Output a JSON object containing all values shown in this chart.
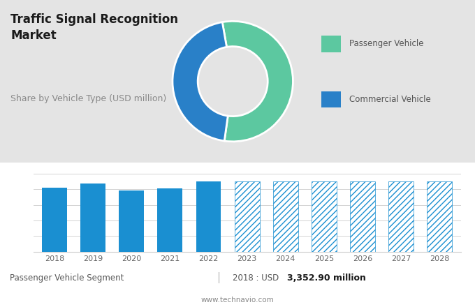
{
  "title": "Traffic Signal Recognition\nMarket",
  "subtitle": "Share by Vehicle Type (USD million)",
  "donut_values": [
    55,
    45
  ],
  "donut_colors": [
    "#5CC8A0",
    "#2980C8"
  ],
  "donut_labels": [
    "Passenger Vehicle",
    "Commercial Vehicle"
  ],
  "bar_years": [
    2018,
    2019,
    2020,
    2021,
    2022,
    2023,
    2024,
    2025,
    2026,
    2027,
    2028
  ],
  "bar_heights_solid": [
    82,
    87,
    78,
    81,
    90,
    0,
    0,
    0,
    0,
    0,
    0
  ],
  "bar_heights_hatched": [
    0,
    0,
    0,
    0,
    0,
    90,
    90,
    90,
    90,
    90,
    90
  ],
  "bar_color_solid": "#1A8FD1",
  "bar_color_hatched": "#1A8FD1",
  "top_bg_color": "#E4E4E4",
  "bottom_bg_color": "#FFFFFF",
  "footer_left": "Passenger Vehicle Segment",
  "footer_sep": "|",
  "footer_year_text": "2018 : USD ",
  "footer_value": "3,352.90 million",
  "footer_url": "www.technavio.com",
  "hatch_pattern": "////",
  "ylim_max": 110,
  "grid_lines": [
    20,
    40,
    60,
    80,
    100
  ]
}
